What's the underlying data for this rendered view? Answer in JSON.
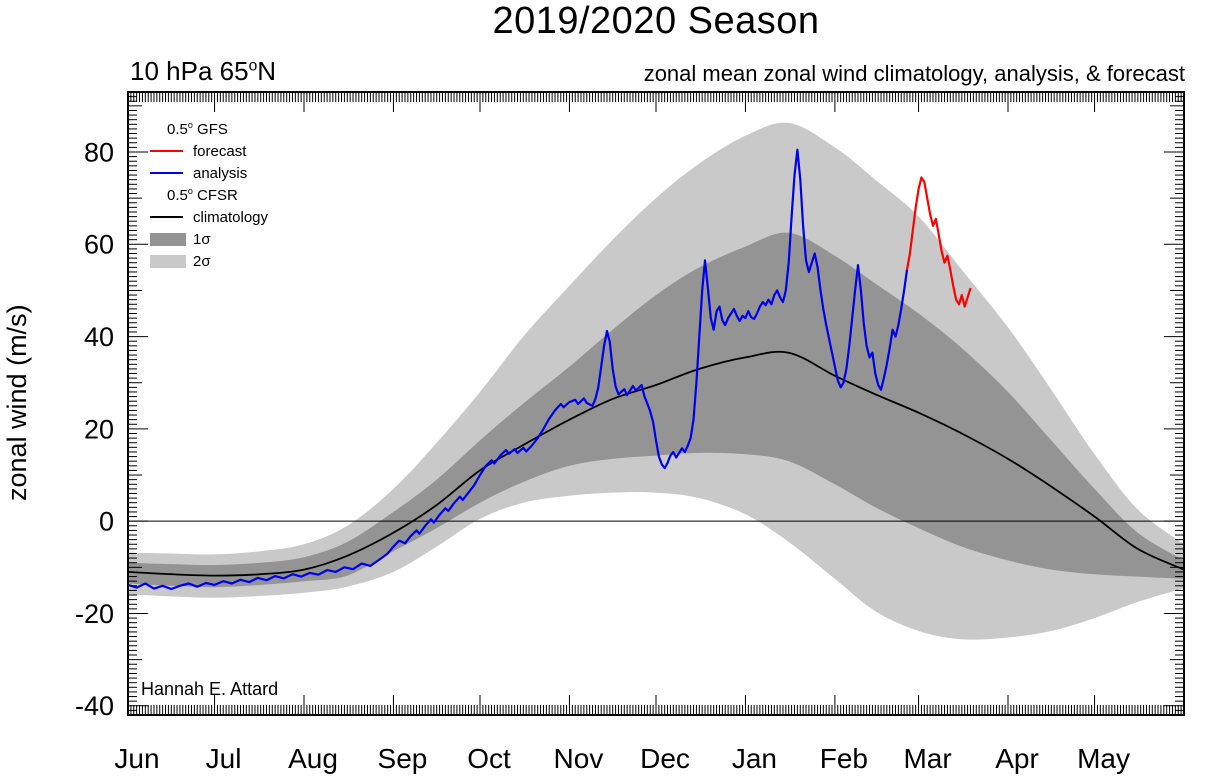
{
  "title": "2019/2020 Season",
  "header_left": {
    "pre": "10 hPa 65",
    "sup": "o",
    "post": "N"
  },
  "header_right": "zonal mean zonal wind climatology, analysis, & forecast",
  "y_axis_title": "zonal wind (m/s)",
  "attribution": "Hannah E. Attard",
  "legend": {
    "gfs": {
      "pre": "0.5",
      "sup": "o",
      "post": " GFS"
    },
    "forecast_label": "forecast",
    "analysis_label": "analysis",
    "cfsr": {
      "pre": "0.5",
      "sup": "o",
      "post": " CFSR"
    },
    "climatology_label": "climatology",
    "sigma1_label": "1σ",
    "sigma2_label": "2σ"
  },
  "colors": {
    "forecast": "#ff0000",
    "analysis": "#0000ee",
    "climatology": "#000000",
    "sigma1": "#949494",
    "sigma2": "#c9c9c9",
    "axis": "#000000"
  },
  "chart_data": {
    "type": "line",
    "title": "2019/2020 Season",
    "subtitle_left": "10 hPa 65N (degrees as superscript o)",
    "subtitle_right": "zonal mean zonal wind climatology, analysis, & forecast",
    "ylabel": "zonal wind (m/s)",
    "ylim": [
      -42,
      93
    ],
    "y_major_ticks": [
      -40,
      -20,
      0,
      20,
      40,
      60,
      80
    ],
    "xlabel_months": [
      "Jun",
      "Jul",
      "Aug",
      "Sep",
      "Oct",
      "Nov",
      "Dec",
      "Jan",
      "Feb",
      "Mar",
      "Apr",
      "May"
    ],
    "month_start_days": [
      0,
      30,
      61,
      92,
      122,
      153,
      183,
      214,
      245,
      274,
      305,
      335
    ],
    "total_days": 366,
    "legend_position": "top-left inside plot",
    "grid": false,
    "zero_line": true,
    "sample_days": [
      0,
      15,
      30,
      46,
      61,
      76,
      92,
      107,
      122,
      137,
      153,
      168,
      183,
      198,
      214,
      229,
      245,
      259,
      274,
      289,
      305,
      320,
      335,
      350,
      366
    ],
    "climatology": [
      -11,
      -11.5,
      -11.8,
      -11.5,
      -10.5,
      -7.5,
      -2.5,
      3.5,
      11,
      16.5,
      22,
      26.5,
      29.5,
      33,
      35.5,
      36.5,
      31.5,
      27.5,
      23.5,
      19,
      13.5,
      7.5,
      1,
      -6,
      -10.5
    ],
    "sigma1_band": {
      "top": [
        -9,
        -9.3,
        -9.5,
        -9,
        -7.8,
        -4.5,
        2,
        9,
        17.5,
        25.5,
        33.5,
        41.5,
        49,
        55,
        59.5,
        62.5,
        57.5,
        51.5,
        45,
        37.5,
        28,
        17.5,
        7,
        -2.5,
        -8.5
      ],
      "bottom": [
        -13.5,
        -14,
        -14.3,
        -13.8,
        -13,
        -11.8,
        -6.5,
        -1.5,
        4,
        8.5,
        12,
        13.5,
        14.2,
        14.8,
        14.5,
        13,
        8,
        3,
        -1.5,
        -5.5,
        -8.5,
        -10.5,
        -11.5,
        -12,
        -12.5
      ]
    },
    "sigma2_band": {
      "top": [
        -6.8,
        -7,
        -7.2,
        -6.5,
        -5,
        -1,
        7,
        17,
        28,
        40,
        51,
        61,
        70,
        77.5,
        83.5,
        86.3,
        81,
        74,
        66,
        54.5,
        42,
        28.5,
        14.5,
        2.5,
        -5
      ],
      "bottom": [
        -15.8,
        -16.3,
        -16.6,
        -16.2,
        -15.5,
        -14.2,
        -11,
        -5.5,
        0.5,
        4,
        5.5,
        6.2,
        6.2,
        5,
        1.5,
        -4.5,
        -12.5,
        -19.5,
        -23.8,
        -25.6,
        -25.2,
        -23.8,
        -21,
        -17.5,
        -14.5
      ]
    },
    "analysis": {
      "points": [
        [
          0,
          -13.8
        ],
        [
          3,
          -14.4
        ],
        [
          6,
          -13.5
        ],
        [
          9,
          -14.6
        ],
        [
          12,
          -14
        ],
        [
          15,
          -14.7
        ],
        [
          18,
          -14
        ],
        [
          21,
          -13.5
        ],
        [
          24,
          -14.2
        ],
        [
          27,
          -13.4
        ],
        [
          30,
          -13.8
        ],
        [
          33,
          -13
        ],
        [
          36,
          -13.5
        ],
        [
          39,
          -12.7
        ],
        [
          42,
          -13.2
        ],
        [
          45,
          -12.3
        ],
        [
          48,
          -12.8
        ],
        [
          51,
          -11.9
        ],
        [
          54,
          -12.4
        ],
        [
          57,
          -11.5
        ],
        [
          60,
          -12
        ],
        [
          63,
          -11.2
        ],
        [
          66,
          -11.6
        ],
        [
          69,
          -10.6
        ],
        [
          72,
          -11
        ],
        [
          75,
          -10
        ],
        [
          78,
          -10.4
        ],
        [
          81,
          -9.2
        ],
        [
          84,
          -9.7
        ],
        [
          87,
          -8.4
        ],
        [
          90,
          -7
        ],
        [
          92,
          -5.5
        ],
        [
          94,
          -4.2
        ],
        [
          96,
          -4.8
        ],
        [
          98,
          -3.2
        ],
        [
          100,
          -2
        ],
        [
          101,
          -2.7
        ],
        [
          103,
          -1
        ],
        [
          105,
          0.4
        ],
        [
          106,
          -0.3
        ],
        [
          108,
          1.4
        ],
        [
          110,
          2.8
        ],
        [
          111,
          2.2
        ],
        [
          113,
          3.9
        ],
        [
          115,
          5.3
        ],
        [
          116,
          4.6
        ],
        [
          118,
          6.2
        ],
        [
          120,
          7.8
        ],
        [
          122,
          10
        ],
        [
          124,
          12
        ],
        [
          126,
          13.2
        ],
        [
          127,
          12.5
        ],
        [
          129,
          14.2
        ],
        [
          131,
          15.4
        ],
        [
          132,
          14.6
        ],
        [
          134,
          15.6
        ],
        [
          135,
          14.8
        ],
        [
          137,
          15.9
        ],
        [
          138,
          15.1
        ],
        [
          140,
          16.4
        ],
        [
          142,
          18
        ],
        [
          144,
          20
        ],
        [
          146,
          22.2
        ],
        [
          148,
          24
        ],
        [
          150,
          25.4
        ],
        [
          151,
          24.7
        ],
        [
          153,
          25.8
        ],
        [
          155,
          26.3
        ],
        [
          156,
          25.4
        ],
        [
          158,
          26.6
        ],
        [
          159,
          25.6
        ],
        [
          161,
          25
        ],
        [
          162,
          26.5
        ],
        [
          163,
          29
        ],
        [
          164,
          33.5
        ],
        [
          165,
          38
        ],
        [
          166,
          41.2
        ],
        [
          167,
          38.8
        ],
        [
          168,
          33
        ],
        [
          169,
          29.2
        ],
        [
          170,
          27.5
        ],
        [
          172,
          28.6
        ],
        [
          173,
          27.3
        ],
        [
          175,
          29.3
        ],
        [
          176,
          28.3
        ],
        [
          178,
          29.5
        ],
        [
          179,
          27
        ],
        [
          180,
          25.5
        ],
        [
          181,
          23.8
        ],
        [
          182,
          21.5
        ],
        [
          183,
          17.5
        ],
        [
          184,
          14
        ],
        [
          185,
          12.3
        ],
        [
          186,
          11.5
        ],
        [
          187,
          12.6
        ],
        [
          188,
          14.2
        ],
        [
          189,
          15
        ],
        [
          190,
          13.8
        ],
        [
          192,
          15.8
        ],
        [
          193,
          15
        ],
        [
          194,
          16.3
        ],
        [
          195,
          18
        ],
        [
          196,
          22
        ],
        [
          197,
          30
        ],
        [
          198,
          40
        ],
        [
          199,
          50
        ],
        [
          200,
          56.5
        ],
        [
          201,
          50.5
        ],
        [
          202,
          44
        ],
        [
          203,
          41.5
        ],
        [
          204,
          45.5
        ],
        [
          205,
          46.5
        ],
        [
          206,
          43.5
        ],
        [
          207,
          42.5
        ],
        [
          208,
          44
        ],
        [
          209,
          45
        ],
        [
          210,
          46
        ],
        [
          211,
          44.5
        ],
        [
          212,
          43.4
        ],
        [
          213,
          44.5
        ],
        [
          214,
          44
        ],
        [
          215,
          45.5
        ],
        [
          216,
          44.2
        ],
        [
          217,
          43.8
        ],
        [
          218,
          45
        ],
        [
          219,
          46.5
        ],
        [
          220,
          47.5
        ],
        [
          221,
          46.8
        ],
        [
          222,
          48
        ],
        [
          223,
          47
        ],
        [
          224,
          49
        ],
        [
          225,
          50
        ],
        [
          226,
          48.5
        ],
        [
          227,
          47.5
        ],
        [
          228,
          50
        ],
        [
          229,
          56
        ],
        [
          230,
          66
        ],
        [
          231,
          75
        ],
        [
          232,
          80.5
        ],
        [
          233,
          74
        ],
        [
          234,
          64
        ],
        [
          235,
          56.5
        ],
        [
          236,
          54
        ],
        [
          237,
          56
        ],
        [
          238,
          58
        ],
        [
          239,
          55
        ],
        [
          240,
          50
        ],
        [
          241,
          46
        ],
        [
          242,
          42.5
        ],
        [
          243,
          39.5
        ],
        [
          244,
          36.5
        ],
        [
          245,
          33.5
        ],
        [
          246,
          30.5
        ],
        [
          247,
          29
        ],
        [
          248,
          30
        ],
        [
          249,
          33
        ],
        [
          250,
          38
        ],
        [
          251,
          44
        ],
        [
          252,
          50
        ],
        [
          253,
          55.5
        ],
        [
          254,
          50
        ],
        [
          255,
          43
        ],
        [
          256,
          38
        ],
        [
          257,
          35.5
        ],
        [
          258,
          36.5
        ],
        [
          259,
          32
        ],
        [
          260,
          29.5
        ],
        [
          261,
          28.5
        ],
        [
          262,
          31
        ],
        [
          263,
          34
        ],
        [
          264,
          37.5
        ],
        [
          265,
          41.5
        ],
        [
          266,
          40
        ],
        [
          267,
          42.5
        ],
        [
          268,
          46
        ],
        [
          269,
          50
        ],
        [
          270,
          54.5
        ]
      ]
    },
    "forecast": {
      "points": [
        [
          270,
          54.5
        ],
        [
          271,
          58
        ],
        [
          272,
          63
        ],
        [
          273,
          68
        ],
        [
          274,
          72
        ],
        [
          275,
          74.5
        ],
        [
          276,
          73.5
        ],
        [
          277,
          70
        ],
        [
          278,
          66.5
        ],
        [
          279,
          64
        ],
        [
          280,
          65.5
        ],
        [
          281,
          62
        ],
        [
          282,
          58.5
        ],
        [
          283,
          56
        ],
        [
          284,
          57.5
        ],
        [
          285,
          54.5
        ],
        [
          286,
          51
        ],
        [
          287,
          48
        ],
        [
          288,
          47
        ],
        [
          289,
          49
        ],
        [
          290,
          46.5
        ],
        [
          291,
          48.5
        ],
        [
          292,
          50.5
        ]
      ]
    }
  }
}
